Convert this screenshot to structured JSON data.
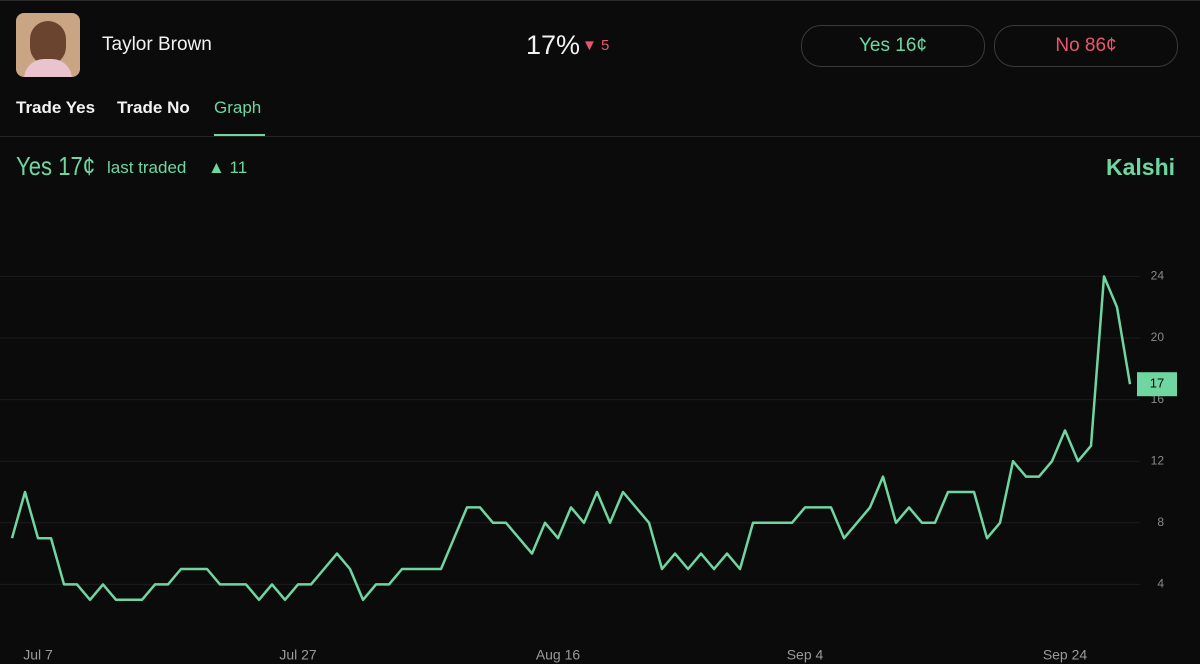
{
  "header": {
    "name": "Taylor Brown",
    "percent": "17%",
    "change": "▼ 5",
    "yes_button": "Yes 16¢",
    "no_button": "No 86¢"
  },
  "tabs": [
    "Trade Yes",
    "Trade No",
    "Graph"
  ],
  "quote": {
    "price": "Yes 17¢",
    "note": "last traded",
    "change": "▲ 11",
    "brand": "Kalshi"
  },
  "chart_data": {
    "type": "line",
    "categories": [
      null,
      null,
      "Jul 7",
      null,
      null,
      null,
      null,
      null,
      null,
      null,
      null,
      null,
      null,
      null,
      null,
      null,
      null,
      null,
      null,
      null,
      null,
      null,
      "Jul 27",
      null,
      null,
      null,
      null,
      null,
      null,
      null,
      null,
      null,
      null,
      null,
      null,
      null,
      null,
      null,
      null,
      null,
      null,
      null,
      "Aug 16",
      null,
      null,
      null,
      null,
      null,
      null,
      null,
      null,
      null,
      null,
      null,
      null,
      null,
      null,
      null,
      null,
      null,
      null,
      "Sep 4",
      null,
      null,
      null,
      null,
      null,
      null,
      null,
      null,
      null,
      null,
      null,
      null,
      null,
      null,
      null,
      null,
      null,
      null,
      null,
      "Sep 24",
      null,
      null,
      null,
      null,
      null
    ],
    "series": [
      {
        "color": "#6fd6a2",
        "values": [
          7,
          10,
          7,
          7,
          4,
          4,
          3,
          4,
          3,
          3,
          3,
          4,
          4,
          5,
          5,
          5,
          4,
          4,
          4,
          3,
          4,
          3,
          4,
          4,
          5,
          6,
          5,
          3,
          4,
          4,
          5,
          5,
          5,
          5,
          7,
          9,
          9,
          8,
          8,
          7,
          6,
          8,
          7,
          9,
          8,
          10,
          8,
          10,
          9,
          8,
          5,
          6,
          5,
          6,
          5,
          6,
          5,
          8,
          8,
          8,
          8,
          9,
          9,
          9,
          7,
          8,
          9,
          11,
          8,
          9,
          8,
          8,
          10,
          10,
          10,
          7,
          8,
          12,
          11,
          11,
          12,
          14,
          12,
          13,
          24,
          22,
          17
        ]
      }
    ],
    "ylim": [
      0,
      25
    ],
    "yticks": [
      4,
      8,
      12,
      16,
      20,
      24
    ],
    "grid": true
  }
}
